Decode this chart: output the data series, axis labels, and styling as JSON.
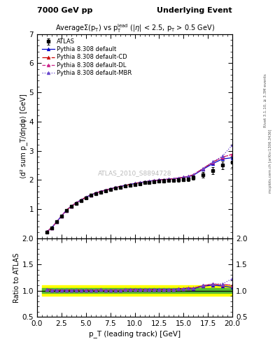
{
  "title_left": "7000 GeV pp",
  "title_right": "Underlying Event",
  "ylabel_main": "⟨d² sum p_T/dηdφ⟩ [GeV]",
  "ylabel_ratio": "Ratio to ATLAS",
  "xlabel": "p_T (leading track) [GeV]",
  "watermark": "ATLAS_2010_S8894728",
  "right_label": "mcplots.cern.ch [arXiv:1306.3436]",
  "rivet_label": "Rivet 3.1.10, ≥ 3.3M events",
  "xlim": [
    0,
    20
  ],
  "ylim_main": [
    0,
    7
  ],
  "ylim_ratio": [
    0.5,
    2.0
  ],
  "yticks_main": [
    1,
    2,
    3,
    4,
    5,
    6,
    7
  ],
  "yticks_ratio": [
    0.5,
    1.0,
    1.5,
    2.0
  ],
  "atlas_x": [
    1.0,
    1.5,
    2.0,
    2.5,
    3.0,
    3.5,
    4.0,
    4.5,
    5.0,
    5.5,
    6.0,
    6.5,
    7.0,
    7.5,
    8.0,
    8.5,
    9.0,
    9.5,
    10.0,
    10.5,
    11.0,
    11.5,
    12.0,
    12.5,
    13.0,
    13.5,
    14.0,
    14.5,
    15.0,
    15.5,
    16.0,
    17.0,
    18.0,
    19.0,
    20.0
  ],
  "atlas_y": [
    0.22,
    0.36,
    0.56,
    0.76,
    0.95,
    1.09,
    1.2,
    1.3,
    1.39,
    1.47,
    1.53,
    1.58,
    1.63,
    1.67,
    1.71,
    1.75,
    1.78,
    1.81,
    1.84,
    1.87,
    1.9,
    1.92,
    1.94,
    1.96,
    1.97,
    1.98,
    1.99,
    2.0,
    2.01,
    2.02,
    2.08,
    2.18,
    2.32,
    2.5,
    2.6
  ],
  "atlas_yerr": [
    0.01,
    0.01,
    0.015,
    0.02,
    0.02,
    0.02,
    0.02,
    0.02,
    0.02,
    0.02,
    0.03,
    0.03,
    0.03,
    0.03,
    0.03,
    0.03,
    0.03,
    0.04,
    0.04,
    0.04,
    0.04,
    0.04,
    0.05,
    0.05,
    0.05,
    0.05,
    0.05,
    0.06,
    0.06,
    0.07,
    0.08,
    0.09,
    0.11,
    0.13,
    0.15
  ],
  "atlas_band_yellow": 0.1,
  "atlas_band_green": 0.05,
  "pythia_default_y": [
    0.225,
    0.365,
    0.565,
    0.765,
    0.96,
    1.1,
    1.215,
    1.315,
    1.405,
    1.485,
    1.55,
    1.605,
    1.65,
    1.695,
    1.735,
    1.775,
    1.808,
    1.845,
    1.878,
    1.908,
    1.93,
    1.96,
    1.98,
    2.0,
    2.015,
    2.025,
    2.04,
    2.065,
    2.09,
    2.11,
    2.16,
    2.365,
    2.56,
    2.72,
    2.76
  ],
  "pythia_cd_y": [
    0.225,
    0.365,
    0.565,
    0.765,
    0.96,
    1.1,
    1.215,
    1.315,
    1.405,
    1.485,
    1.55,
    1.605,
    1.65,
    1.695,
    1.735,
    1.775,
    1.808,
    1.845,
    1.878,
    1.908,
    1.93,
    1.96,
    1.98,
    2.0,
    2.015,
    2.025,
    2.04,
    2.065,
    2.095,
    2.125,
    2.18,
    2.39,
    2.61,
    2.78,
    2.88
  ],
  "pythia_dl_y": [
    0.225,
    0.365,
    0.565,
    0.765,
    0.96,
    1.1,
    1.215,
    1.315,
    1.405,
    1.485,
    1.55,
    1.605,
    1.65,
    1.695,
    1.735,
    1.775,
    1.808,
    1.845,
    1.878,
    1.908,
    1.93,
    1.96,
    1.98,
    2.0,
    2.015,
    2.025,
    2.04,
    2.065,
    2.095,
    2.125,
    2.18,
    2.39,
    2.61,
    2.78,
    2.88
  ],
  "pythia_mbr_y": [
    0.225,
    0.365,
    0.565,
    0.765,
    0.96,
    1.1,
    1.215,
    1.315,
    1.405,
    1.485,
    1.55,
    1.605,
    1.65,
    1.695,
    1.735,
    1.775,
    1.808,
    1.845,
    1.878,
    1.908,
    1.93,
    1.96,
    1.98,
    2.0,
    2.015,
    2.025,
    2.04,
    2.065,
    2.095,
    2.125,
    2.18,
    2.39,
    2.62,
    2.82,
    3.2
  ],
  "color_default": "#0000cc",
  "color_cd": "#cc0000",
  "color_dl": "#cc2288",
  "color_mbr": "#6644cc",
  "marker_size": 3.5,
  "fig_width": 3.93,
  "fig_height": 5.12
}
